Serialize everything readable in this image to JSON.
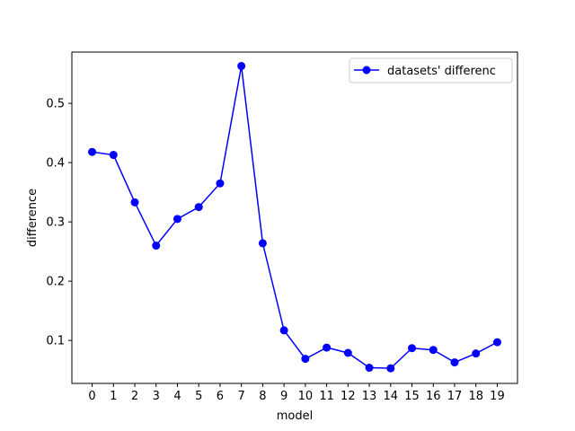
{
  "chart_data": {
    "type": "line",
    "title": "",
    "xlabel": "model",
    "ylabel": "difference",
    "x": [
      0,
      1,
      2,
      3,
      4,
      5,
      6,
      7,
      8,
      9,
      10,
      11,
      12,
      13,
      14,
      15,
      16,
      17,
      18,
      19
    ],
    "xticks": [
      "0",
      "1",
      "2",
      "3",
      "4",
      "5",
      "6",
      "7",
      "8",
      "9",
      "10",
      "11",
      "12",
      "13",
      "14",
      "15",
      "16",
      "17",
      "18",
      "19"
    ],
    "yticks": [
      "0.1",
      "0.2",
      "0.3",
      "0.4",
      "0.5"
    ],
    "ytick_values": [
      0.1,
      0.2,
      0.3,
      0.4,
      0.5
    ],
    "xlim": [
      -0.95,
      19.95
    ],
    "ylim": [
      0.0275,
      0.5865
    ],
    "grid": false,
    "legend_position": "top-right",
    "series": [
      {
        "name": "datasets' differenc",
        "color": "#0000ff",
        "marker": "circle",
        "values": [
          0.418,
          0.413,
          0.333,
          0.26,
          0.305,
          0.325,
          0.365,
          0.563,
          0.264,
          0.117,
          0.069,
          0.088,
          0.079,
          0.054,
          0.053,
          0.087,
          0.084,
          0.063,
          0.078,
          0.097
        ]
      }
    ]
  }
}
